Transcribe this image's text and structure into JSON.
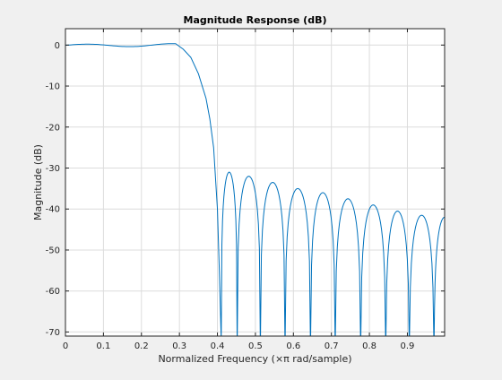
{
  "chart_data": {
    "type": "line",
    "title": "Magnitude Response (dB)",
    "xlabel": "Normalized Frequency (×π rad/sample)",
    "ylabel": "Magnitude (dB)",
    "xlim": [
      0,
      0.998
    ],
    "ylim": [
      -71,
      4
    ],
    "xticks": [
      "0",
      "0.1",
      "0.2",
      "0.3",
      "0.4",
      "0.5",
      "0.6",
      "0.7",
      "0.8",
      "0.9"
    ],
    "yticks": [
      "0",
      "-10",
      "-20",
      "-30",
      "-40",
      "-50",
      "-60",
      "-70"
    ],
    "grid": true,
    "line_color": "#0072bd",
    "passband_ripple_db": 0.4,
    "passband_edge": 0.29,
    "transition": {
      "x": [
        0.29,
        0.31,
        0.33,
        0.35,
        0.37,
        0.38,
        0.39,
        0.4,
        0.405,
        0.41
      ],
      "y": [
        0,
        -1.0,
        -3.0,
        -7.0,
        -13.0,
        -18.0,
        -25.0,
        -40.0,
        -55.0,
        -72.0
      ]
    },
    "stopband_nulls_x": [
      0.41,
      0.452,
      0.513,
      0.578,
      0.645,
      0.71,
      0.777,
      0.843,
      0.905,
      0.97
    ],
    "stopband_peaks": [
      {
        "x": 0.432,
        "y": -31.0
      },
      {
        "x": 0.482,
        "y": -32.0
      },
      {
        "x": 0.545,
        "y": -33.5
      },
      {
        "x": 0.611,
        "y": -35.0
      },
      {
        "x": 0.677,
        "y": -36.0
      },
      {
        "x": 0.743,
        "y": -37.5
      },
      {
        "x": 0.81,
        "y": -39.0
      },
      {
        "x": 0.874,
        "y": -40.5
      },
      {
        "x": 0.937,
        "y": -41.5
      },
      {
        "x": 0.998,
        "y": -42.0
      }
    ]
  }
}
